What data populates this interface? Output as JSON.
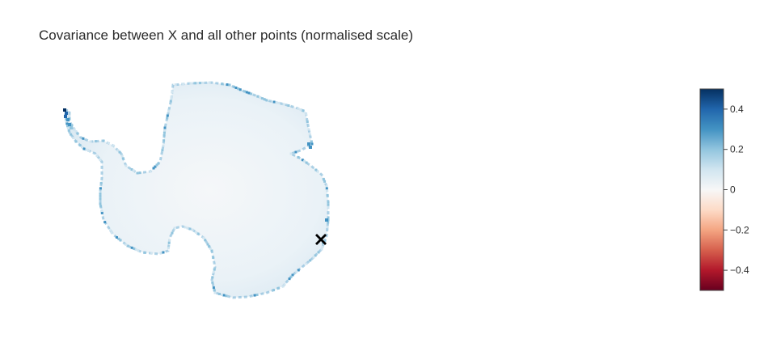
{
  "chart_data": {
    "type": "heatmap",
    "title": "Covariance between X and all other points (normalised scale)",
    "xlabel": "",
    "ylabel": "",
    "grid": false,
    "colorbar": {
      "range": [
        -0.5,
        0.5
      ],
      "ticks": [
        0.4,
        0.2,
        0,
        -0.2,
        -0.4
      ],
      "tick_labels": [
        "0.4",
        "0.2",
        "0",
        "−0.2",
        "−0.4"
      ],
      "colorscale": [
        "#67001f",
        "#b2182b",
        "#d6604d",
        "#f4a582",
        "#fddbc7",
        "#f7f7f7",
        "#d1e5f0",
        "#92c5de",
        "#4393c3",
        "#2166ac",
        "#053061"
      ]
    },
    "field_description": "Covariance with point X over the Antarctic ice sheet grid; interior values ~0.05, coastal/peninsula cells up to ~0.45",
    "interior_value": 0.05,
    "coastal_value_max": 0.45,
    "marker": {
      "symbol": "x",
      "label": "X"
    }
  }
}
